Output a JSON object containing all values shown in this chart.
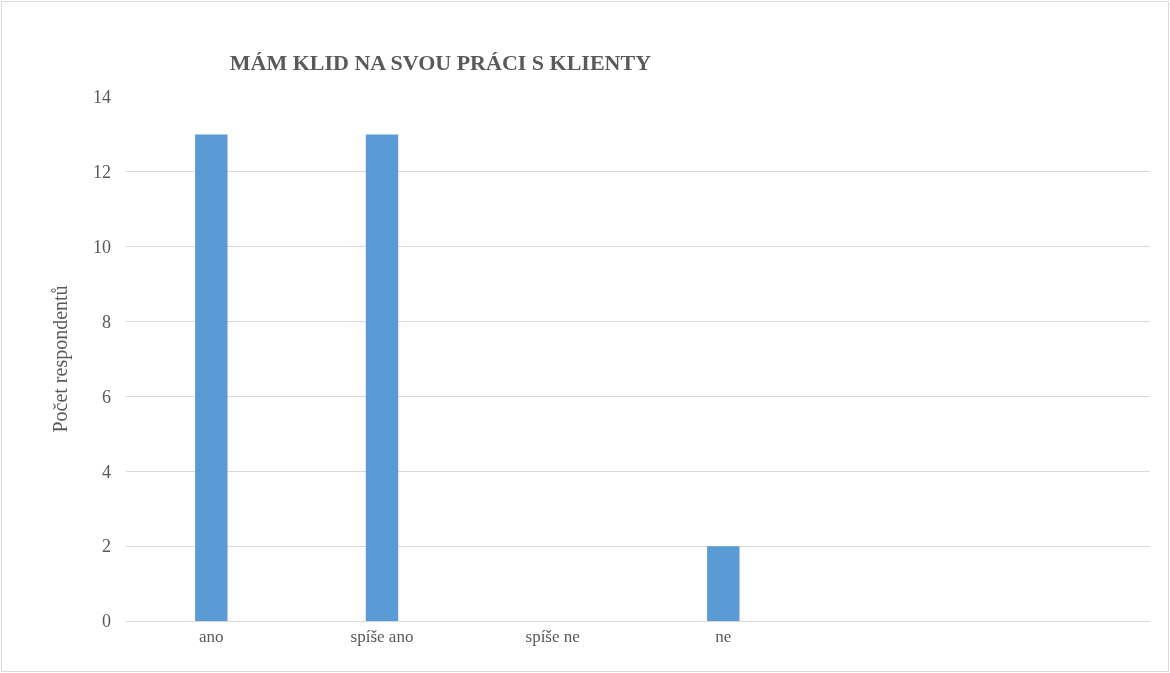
{
  "chart_data": {
    "type": "bar",
    "title": "MÁM KLID NA SVOU PRÁCI S KLIENTY",
    "ylabel": "Počet respondentů",
    "categories": [
      "ano",
      "spíše ano",
      "spíše ne",
      "ne",
      null,
      null
    ],
    "values": [
      13,
      13,
      0,
      2,
      null,
      null
    ],
    "color": "#5b9bd5",
    "ylim": [
      0,
      14
    ],
    "yticks": [
      0,
      2,
      4,
      6,
      8,
      10,
      12,
      14
    ],
    "grid": "y"
  }
}
